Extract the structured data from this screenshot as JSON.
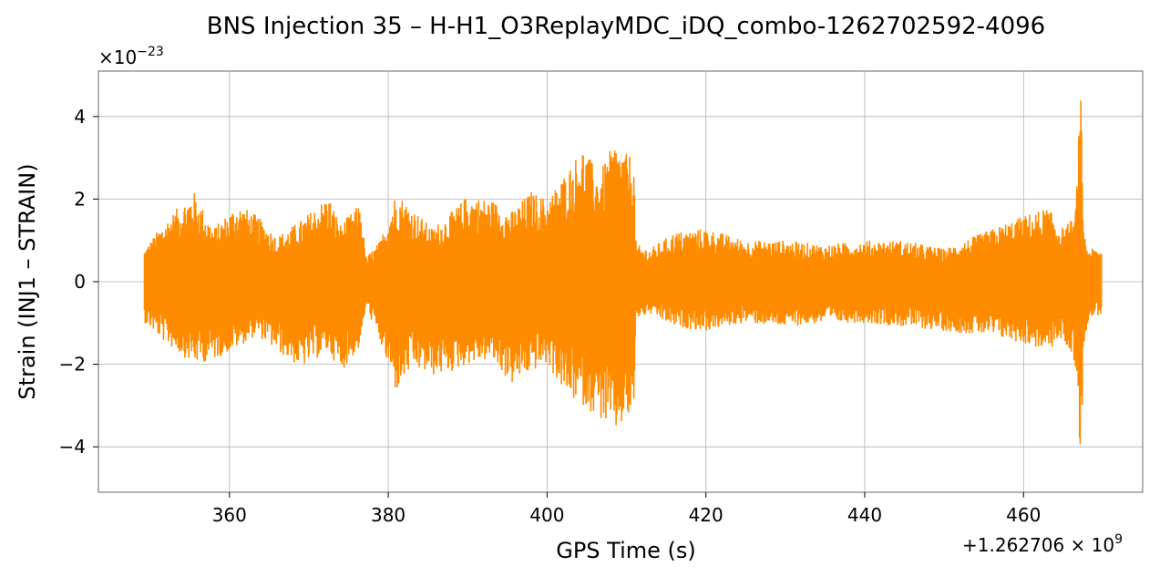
{
  "chart_data": {
    "type": "line",
    "title": "BNS Injection 35 – H-H1_O3ReplayMDC_iDQ_combo-1262702592-4096",
    "xlabel": "GPS Time (s)",
    "ylabel": "Strain (INJ1 – STRAIN)",
    "x_offset_label": "+1.262706",
    "x_offset_exponent": "9",
    "y_multiplier_label": "×10",
    "y_multiplier_exponent": "−23",
    "xlim": [
      343.5,
      475
    ],
    "ylim": [
      -5.1,
      5.1
    ],
    "xticks": [
      360,
      380,
      400,
      420,
      440,
      460
    ],
    "xtick_labels": [
      "360",
      "380",
      "400",
      "420",
      "440",
      "460"
    ],
    "yticks": [
      -4,
      -2,
      0,
      2,
      4
    ],
    "ytick_labels": [
      "−4",
      "−2",
      "0",
      "2",
      "4"
    ],
    "grid": true,
    "series": [
      {
        "color": "#ff8c00",
        "envelope": {
          "x": [
            349.3,
            352,
            355.5,
            358,
            361,
            363.5,
            366,
            369,
            372.5,
            374,
            376.5,
            377.2,
            379,
            381,
            383,
            385.5,
            388,
            390,
            393,
            395.5,
            398,
            400,
            402.5,
            404.5,
            406.5,
            408.5,
            410,
            410.9,
            411.2,
            413,
            416,
            420,
            425,
            430,
            435,
            440,
            445,
            450,
            455,
            460,
            463,
            465,
            466.5,
            467.2,
            467.6,
            468.2,
            469.8
          ],
          "upper": [
            0.8,
            1.5,
            2.2,
            1.3,
            1.9,
            1.6,
            1.1,
            1.5,
            2.1,
            1.4,
            1.9,
            0.6,
            1.0,
            2.2,
            1.8,
            1.3,
            1.7,
            2.1,
            2.0,
            1.7,
            2.2,
            2.0,
            2.7,
            3.3,
            2.6,
            3.4,
            3.1,
            3.1,
            0.9,
            0.8,
            1.2,
            1.3,
            1.0,
            1.0,
            0.9,
            1.0,
            1.0,
            0.8,
            1.2,
            1.6,
            1.8,
            1.3,
            1.6,
            4.6,
            1.2,
            0.8,
            0.8
          ],
          "lower": [
            -1.0,
            -1.5,
            -2.0,
            -1.9,
            -1.6,
            -1.3,
            -1.7,
            -2.1,
            -1.7,
            -2.2,
            -1.6,
            -0.6,
            -1.5,
            -2.7,
            -2.1,
            -2.3,
            -2.2,
            -2.0,
            -1.9,
            -2.5,
            -2.2,
            -2.0,
            -2.8,
            -3.0,
            -3.3,
            -3.7,
            -3.4,
            -3.3,
            -0.9,
            -0.8,
            -1.1,
            -1.2,
            -1.0,
            -1.1,
            -1.0,
            -1.0,
            -1.1,
            -1.2,
            -1.3,
            -1.5,
            -1.7,
            -1.4,
            -2.0,
            -4.6,
            -1.5,
            -0.9,
            -0.8
          ]
        }
      }
    ]
  }
}
